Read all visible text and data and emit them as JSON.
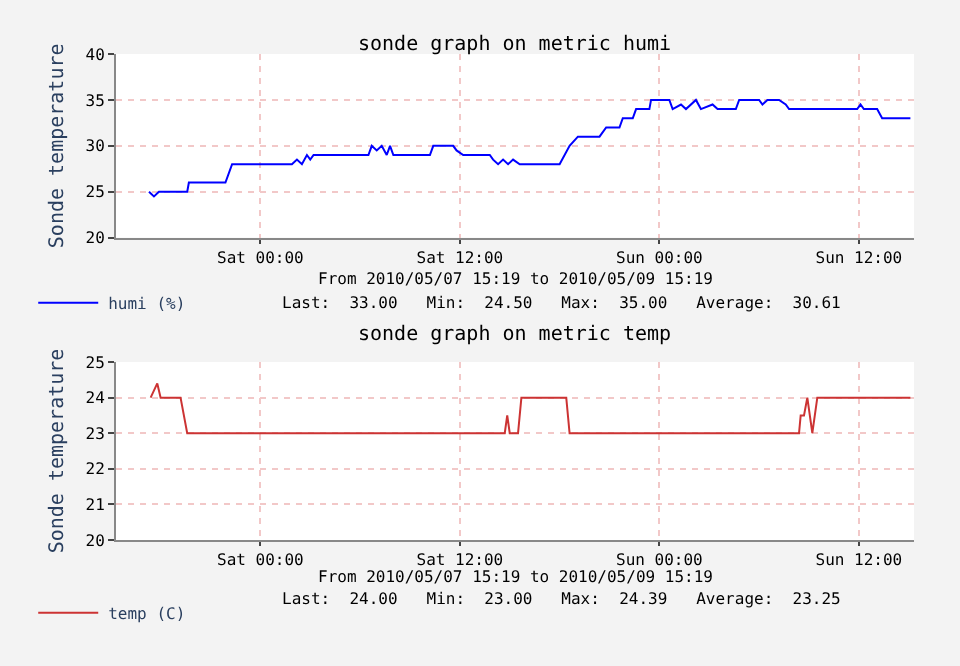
{
  "chart_data": [
    {
      "type": "line",
      "title": "sonde graph on metric humi",
      "ylabel": "Sonde temperature",
      "xlim": [
        "2010-05-07T15:19",
        "2010-05-09T15:19"
      ],
      "xticks": [
        {
          "value": "2010-05-08T00:00",
          "label": "Sat 00:00"
        },
        {
          "value": "2010-05-08T12:00",
          "label": "Sat 12:00"
        },
        {
          "value": "2010-05-09T00:00",
          "label": "Sun 00:00"
        },
        {
          "value": "2010-05-09T12:00",
          "label": "Sun 12:00"
        }
      ],
      "ylim": [
        20,
        40
      ],
      "yticks": [
        20,
        25,
        30,
        35,
        40
      ],
      "grid": true,
      "legend": "bottom left",
      "marker": "none",
      "line_style": "solid",
      "annotations": [
        "From 2010/05/07 15:19 to 2010/05/09 15:19",
        "Last:  33.00   Min:  24.50   Max:  35.00   Average:  30.61"
      ],
      "series": [
        {
          "name": "humi (%)",
          "color": "#0000ff",
          "x": [
            "2010-05-07T17:18",
            "2010-05-07T17:36",
            "2010-05-07T17:54",
            "2010-05-07T19:36",
            "2010-05-07T19:42",
            "2010-05-07T21:54",
            "2010-05-07T22:18",
            "2010-05-08T01:54",
            "2010-05-08T02:12",
            "2010-05-08T02:30",
            "2010-05-08T02:48",
            "2010-05-08T03:00",
            "2010-05-08T03:12",
            "2010-05-08T06:30",
            "2010-05-08T06:42",
            "2010-05-08T07:00",
            "2010-05-08T07:18",
            "2010-05-08T07:36",
            "2010-05-08T07:48",
            "2010-05-08T08:00",
            "2010-05-08T10:12",
            "2010-05-08T10:24",
            "2010-05-08T11:36",
            "2010-05-08T11:48",
            "2010-05-08T12:12",
            "2010-05-08T13:48",
            "2010-05-08T14:00",
            "2010-05-08T14:18",
            "2010-05-08T14:36",
            "2010-05-08T14:54",
            "2010-05-08T15:12",
            "2010-05-08T15:36",
            "2010-05-08T18:00",
            "2010-05-08T18:36",
            "2010-05-08T19:06",
            "2010-05-08T20:24",
            "2010-05-08T20:48",
            "2010-05-08T21:36",
            "2010-05-08T21:48",
            "2010-05-08T22:24",
            "2010-05-08T22:36",
            "2010-05-08T23:24",
            "2010-05-08T23:30",
            "2010-05-09T00:36",
            "2010-05-09T00:48",
            "2010-05-09T01:18",
            "2010-05-09T01:36",
            "2010-05-09T02:12",
            "2010-05-09T02:30",
            "2010-05-09T03:12",
            "2010-05-09T03:30",
            "2010-05-09T04:36",
            "2010-05-09T04:48",
            "2010-05-09T06:00",
            "2010-05-09T06:12",
            "2010-05-09T06:30",
            "2010-05-09T07:12",
            "2010-05-09T07:36",
            "2010-05-09T07:48",
            "2010-05-09T11:54",
            "2010-05-09T12:06",
            "2010-05-09T12:18",
            "2010-05-09T13:06",
            "2010-05-09T13:24",
            "2010-05-09T15:06"
          ],
          "values": [
            25,
            24.5,
            25,
            25,
            26,
            26,
            28,
            28,
            28.5,
            28,
            29,
            28.5,
            29,
            29,
            30,
            29.5,
            30,
            29,
            30,
            29,
            29,
            30,
            30,
            29.5,
            29,
            29,
            28.5,
            28,
            28.5,
            28,
            28.5,
            28,
            28,
            30,
            31,
            31,
            32,
            32,
            33,
            33,
            34,
            34,
            35,
            35,
            34,
            34.5,
            34,
            35,
            34,
            34.5,
            34,
            34,
            35,
            35,
            34.5,
            35,
            35,
            34.5,
            34,
            34,
            34.5,
            34,
            34,
            33,
            33
          ]
        }
      ]
    },
    {
      "type": "line",
      "title": "sonde graph on metric temp",
      "ylabel": "Sonde temperature",
      "xlim": [
        "2010-05-07T15:19",
        "2010-05-09T15:19"
      ],
      "xticks": [
        {
          "value": "2010-05-08T00:00",
          "label": "Sat 00:00"
        },
        {
          "value": "2010-05-08T12:00",
          "label": "Sat 12:00"
        },
        {
          "value": "2010-05-09T00:00",
          "label": "Sun 00:00"
        },
        {
          "value": "2010-05-09T12:00",
          "label": "Sun 12:00"
        }
      ],
      "ylim": [
        20,
        25
      ],
      "yticks": [
        20,
        21,
        22,
        23,
        24,
        25
      ],
      "grid": true,
      "legend": "bottom left",
      "marker": "none",
      "line_style": "solid",
      "annotations": [
        "From 2010/05/07 15:19 to 2010/05/09 15:19",
        "Last:  24.00   Min:  23.00   Max:  24.39   Average:  23.25"
      ],
      "series": [
        {
          "name": "temp (C)",
          "color": "#cc3333",
          "x": [
            "2010-05-07T17:24",
            "2010-05-07T17:48",
            "2010-05-07T18:00",
            "2010-05-07T19:12",
            "2010-05-07T19:24",
            "2010-05-07T19:36",
            "2010-05-08T14:42",
            "2010-05-08T14:51",
            "2010-05-08T15:00",
            "2010-05-08T15:30",
            "2010-05-08T15:42",
            "2010-05-08T18:24",
            "2010-05-08T18:36",
            "2010-05-09T08:24",
            "2010-05-09T08:30",
            "2010-05-09T08:42",
            "2010-05-09T08:54",
            "2010-05-09T09:12",
            "2010-05-09T09:30",
            "2010-05-09T15:06"
          ],
          "values": [
            24,
            24.4,
            24,
            24,
            23.5,
            23,
            23,
            23.5,
            23,
            23,
            24,
            24,
            23,
            23,
            23.5,
            23.5,
            24,
            23,
            24,
            24
          ]
        }
      ]
    }
  ]
}
